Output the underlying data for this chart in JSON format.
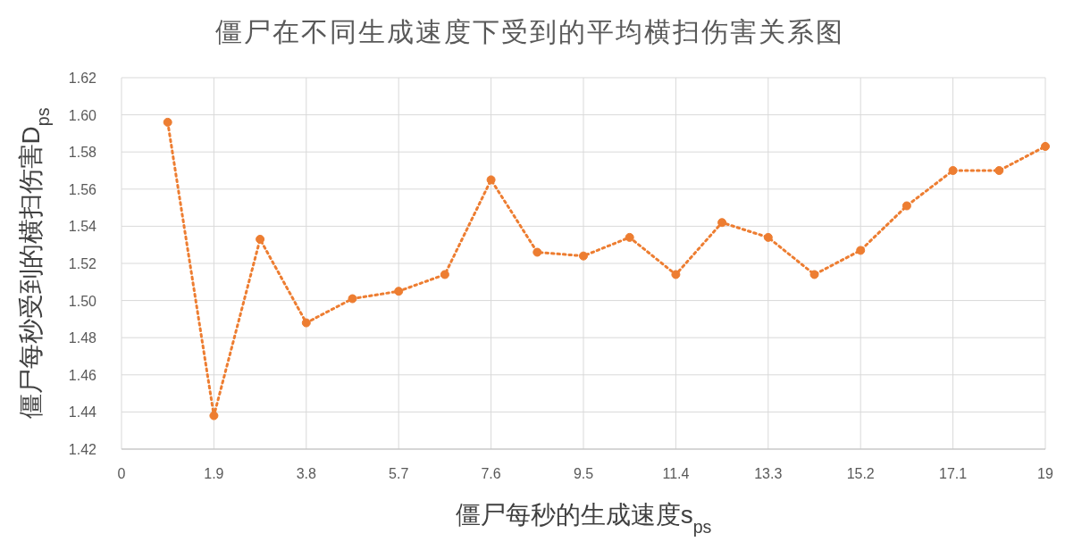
{
  "chart_data": {
    "type": "line",
    "title": "僵尸在不同生成速度下受到的平均横扫伤害关系图",
    "xlabel": "僵尸每秒的生成速度s$_{ps}$",
    "ylabel": "僵尸每秒受到的横扫伤害D$_{ps}$",
    "x": [
      0.95,
      1.9,
      2.85,
      3.8,
      4.75,
      5.7,
      6.65,
      7.6,
      8.55,
      9.5,
      10.45,
      11.4,
      12.35,
      13.3,
      14.25,
      15.2,
      16.15,
      17.1,
      18.05,
      19
    ],
    "series": [
      {
        "color": "#ed7d31",
        "values": [
          1.596,
          1.438,
          1.533,
          1.488,
          1.501,
          1.505,
          1.514,
          1.565,
          1.526,
          1.524,
          1.534,
          1.514,
          1.542,
          1.534,
          1.514,
          1.527,
          1.551,
          1.57,
          1.57,
          1.583
        ]
      }
    ],
    "xlim": [
      0,
      19
    ],
    "xticks": [
      0,
      1.9,
      3.8,
      5.7,
      7.6,
      9.5,
      11.4,
      13.3,
      15.2,
      17.1,
      19
    ],
    "ylim": [
      1.42,
      1.62
    ],
    "yticks": [
      {
        "value": 1.42,
        "label": "1.42"
      },
      {
        "value": 1.44,
        "label": "1.44"
      },
      {
        "value": 1.46,
        "label": "1.46"
      },
      {
        "value": 1.48,
        "label": "1.48"
      },
      {
        "value": 1.5,
        "label": "1.50"
      },
      {
        "value": 1.52,
        "label": "1.52"
      },
      {
        "value": 1.54,
        "label": "1.54"
      },
      {
        "value": 1.56,
        "label": "1.56"
      },
      {
        "value": 1.58,
        "label": "1.58"
      },
      {
        "value": 1.6,
        "label": "1.60"
      },
      {
        "value": 1.62,
        "label": "1.62"
      }
    ],
    "grid": true,
    "marker": "circle",
    "line_style": "dotted"
  }
}
